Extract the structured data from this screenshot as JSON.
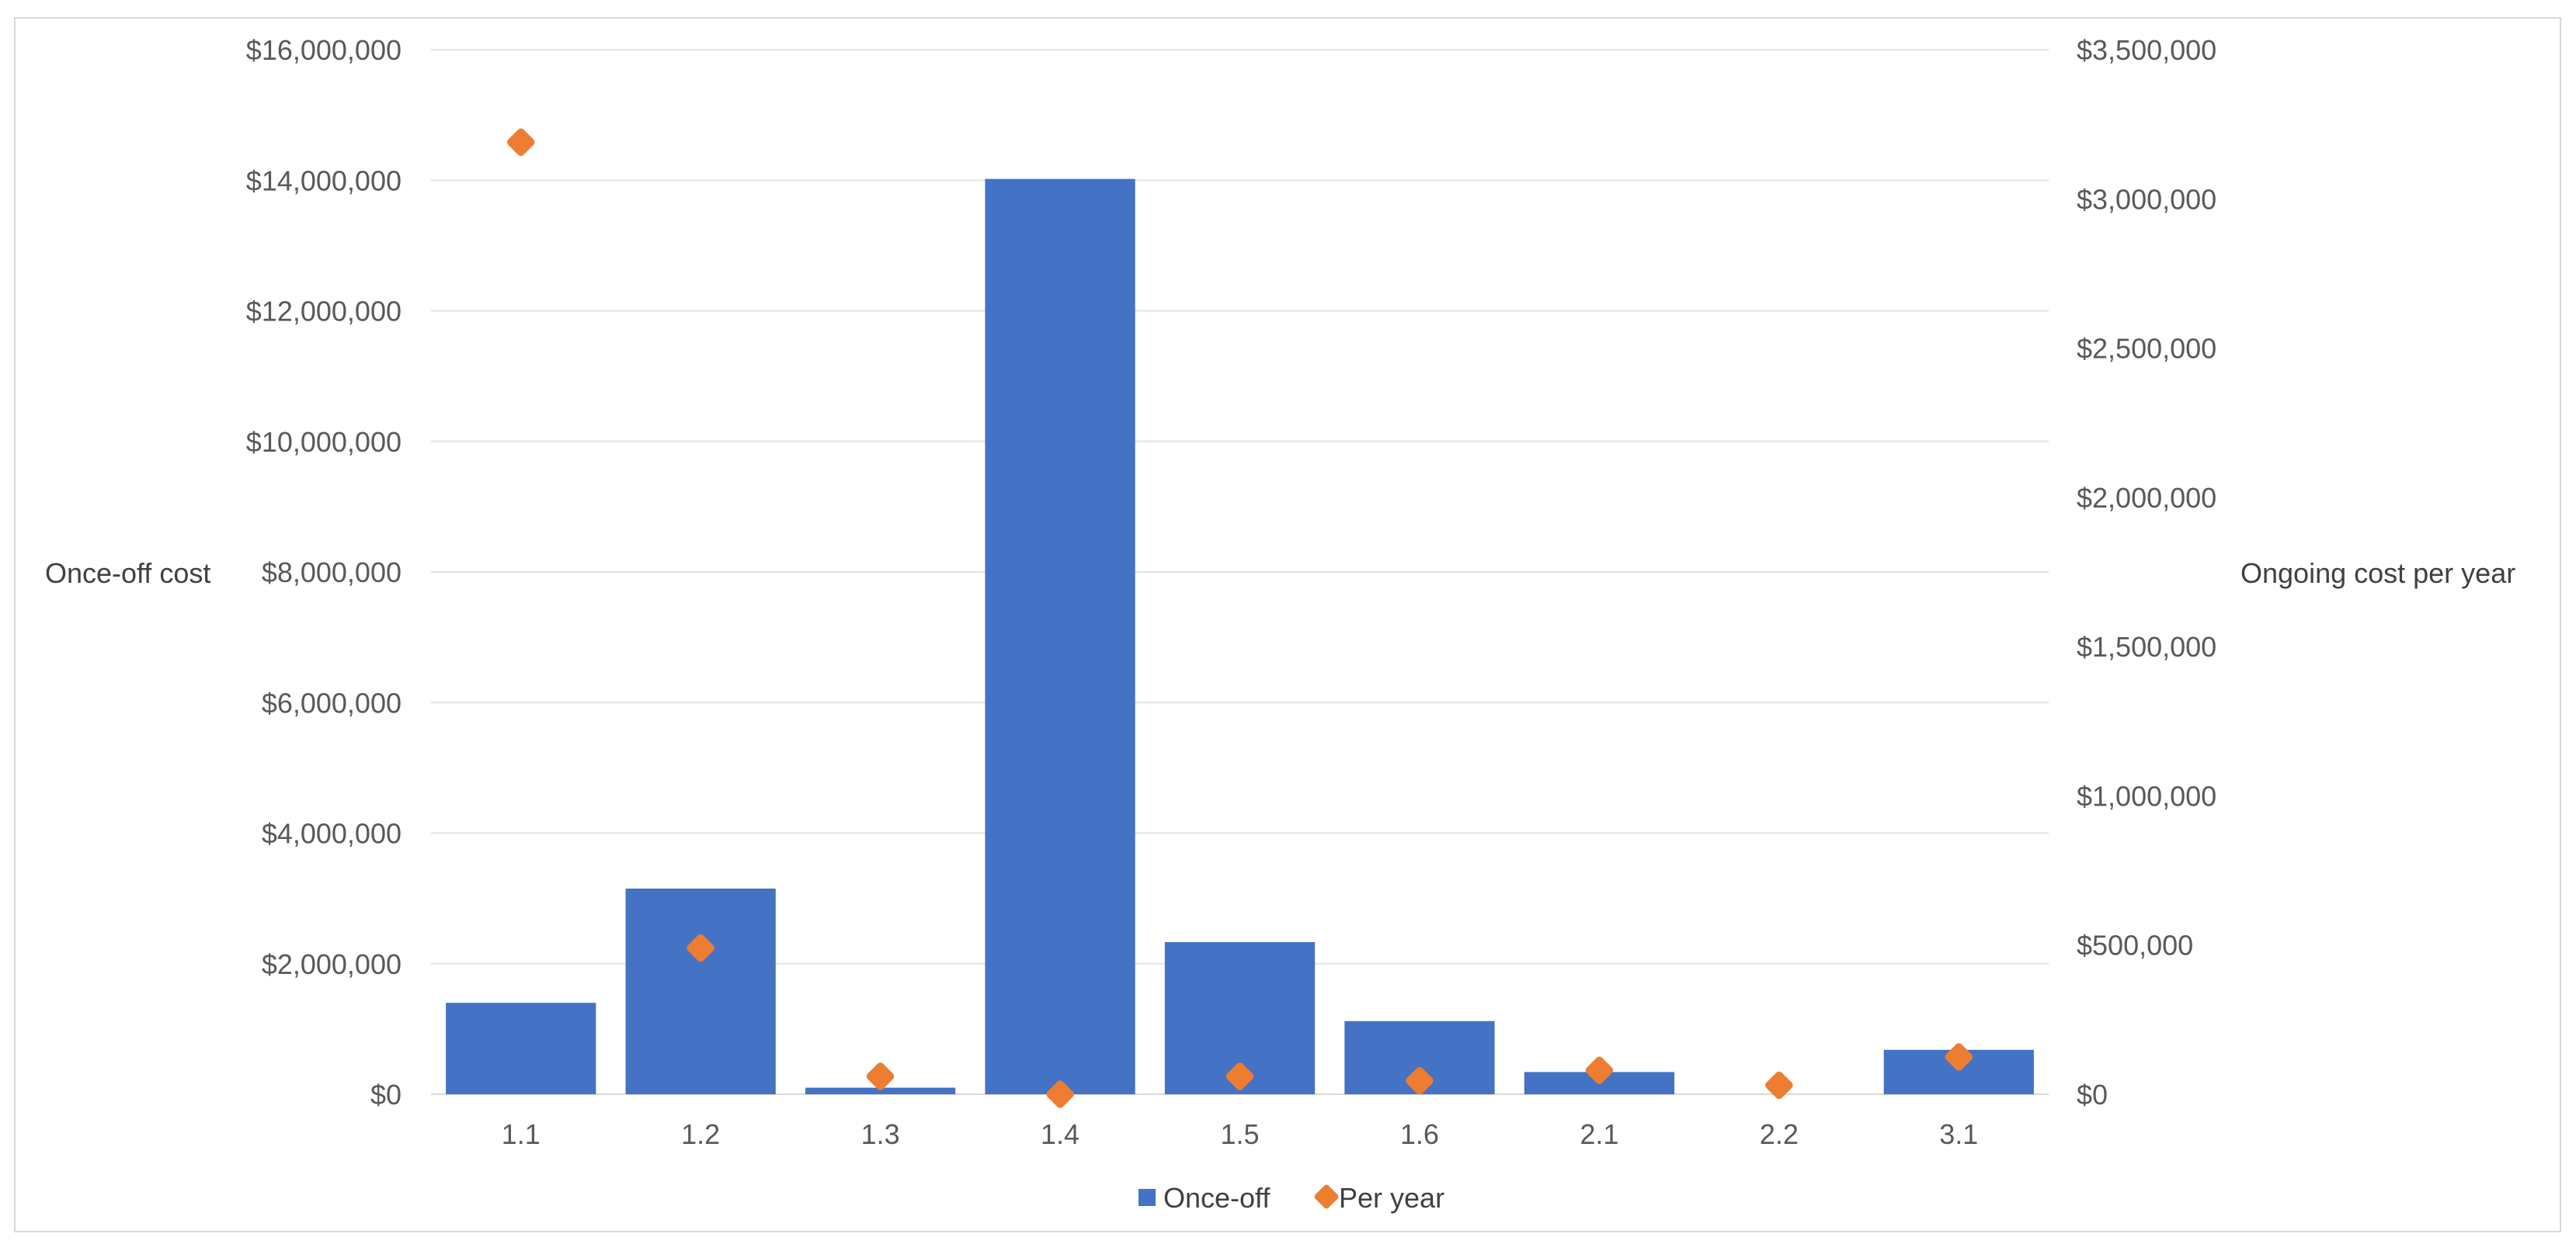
{
  "chart_data": {
    "type": "bar",
    "categories": [
      "1.1",
      "1.2",
      "1.3",
      "1.4",
      "1.5",
      "1.6",
      "2.1",
      "2.2",
      "3.1"
    ],
    "series": [
      {
        "name": "Once-off",
        "type": "bar",
        "axis": "left",
        "color": "#4472c4",
        "values": [
          1400000,
          3150000,
          100000,
          14020000,
          2330000,
          1120000,
          340000,
          0,
          680000
        ]
      },
      {
        "name": "Per year",
        "type": "scatter",
        "axis": "right",
        "color": "#ed7d31",
        "values": [
          3190000,
          490000,
          60000,
          0,
          60000,
          45000,
          80000,
          30000,
          125000
        ]
      }
    ],
    "ylabel": "Once-off cost",
    "y2label": "Ongoing cost per year",
    "ylim": [
      0,
      16000000
    ],
    "y2lim": [
      0,
      3500000
    ],
    "yticks": [
      "$0",
      "$2,000,000",
      "$4,000,000",
      "$6,000,000",
      "$8,000,000",
      "$10,000,000",
      "$12,000,000",
      "$14,000,000",
      "$16,000,000"
    ],
    "y2ticks": [
      "$0",
      "$500,000",
      "$1,000,000",
      "$1,500,000",
      "$2,000,000",
      "$2,500,000",
      "$3,000,000",
      "$3,500,000"
    ],
    "grid": true,
    "legend_position": "bottom"
  }
}
